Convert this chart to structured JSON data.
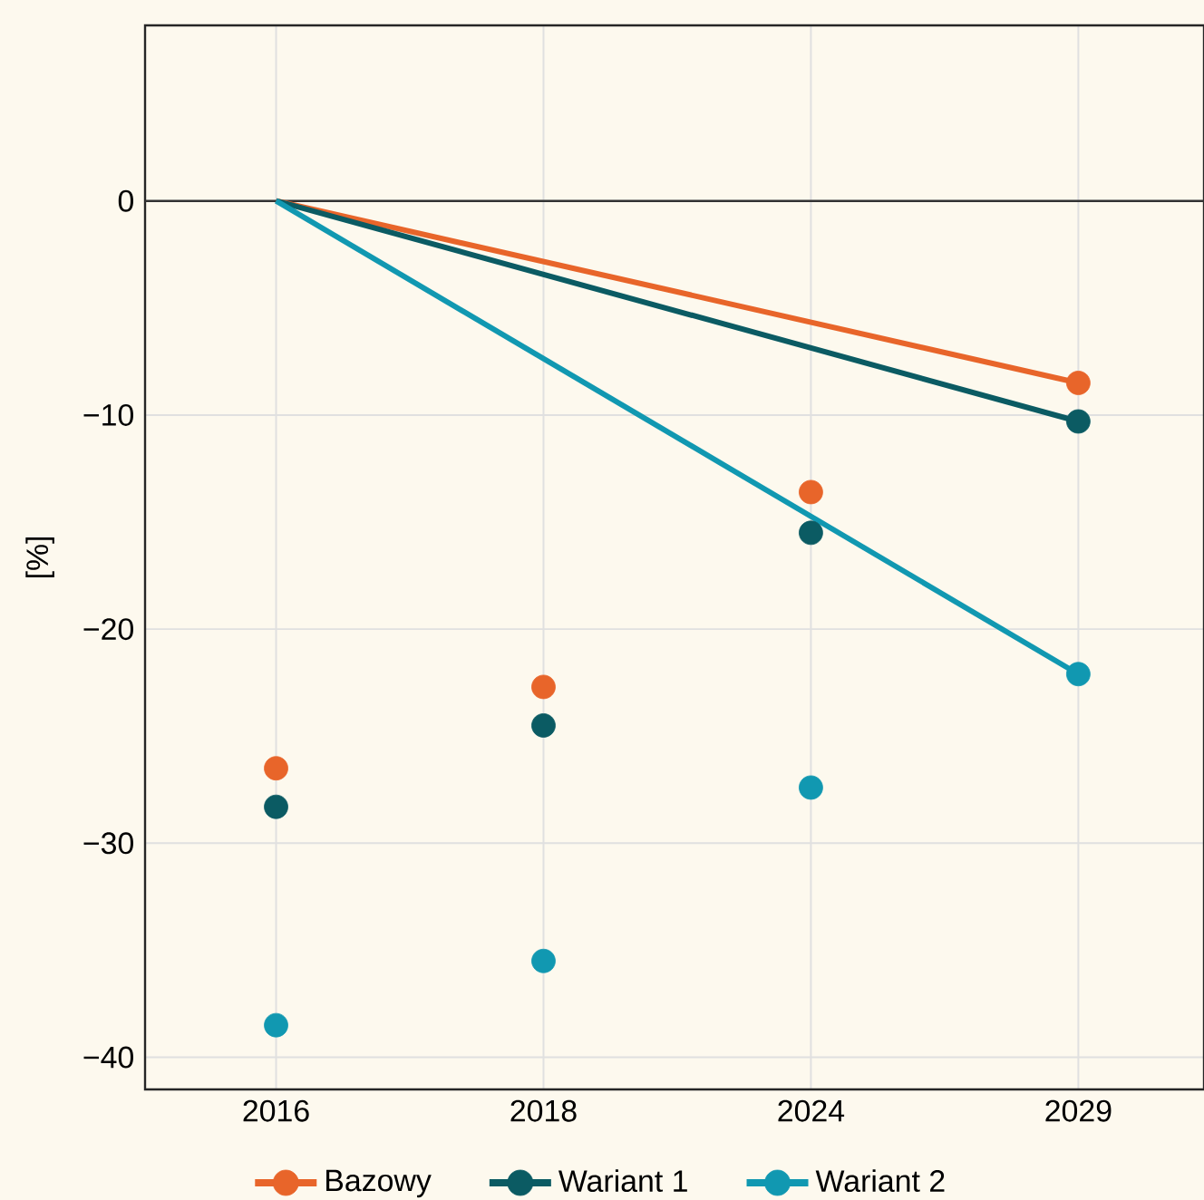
{
  "chart_data": {
    "type": "scatter",
    "ylabel": "[%]",
    "categories": [
      "2016",
      "2018",
      "2024",
      "2029"
    ],
    "series": [
      {
        "name": "Bazowy",
        "color": "#e8652a",
        "values": [
          -26.5,
          -22.7,
          -13.6,
          -8.5
        ]
      },
      {
        "name": "Wariant 1",
        "color": "#0b5b63",
        "values": [
          -28.3,
          -24.5,
          -15.5,
          -10.3
        ]
      },
      {
        "name": "Wariant 2",
        "color": "#1198b1",
        "values": [
          -38.5,
          -35.5,
          -27.4,
          -22.1
        ]
      },
      {
        "type": "line",
        "marker": "none",
        "color": "#e8652a",
        "values": [
          0,
          null,
          null,
          -8.5
        ]
      },
      {
        "type": "line",
        "marker": "none",
        "color": "#0b5b63",
        "values": [
          0,
          null,
          null,
          -10.3
        ]
      },
      {
        "type": "line",
        "marker": "none",
        "color": "#1198b1",
        "values": [
          0,
          null,
          null,
          -22.1
        ]
      }
    ],
    "ylim": [
      -41.5,
      8.2
    ],
    "yticks": [
      {
        "value": -40,
        "label": "−40"
      },
      {
        "value": -30,
        "label": "−30"
      },
      {
        "value": -20,
        "label": "−20"
      },
      {
        "value": -10,
        "label": "−10"
      },
      0
    ],
    "ref_lines": [
      {
        "axis": "y",
        "value": 0,
        "color": "#333333"
      }
    ],
    "grid": true,
    "legend": "bottom",
    "marker": "circle"
  }
}
